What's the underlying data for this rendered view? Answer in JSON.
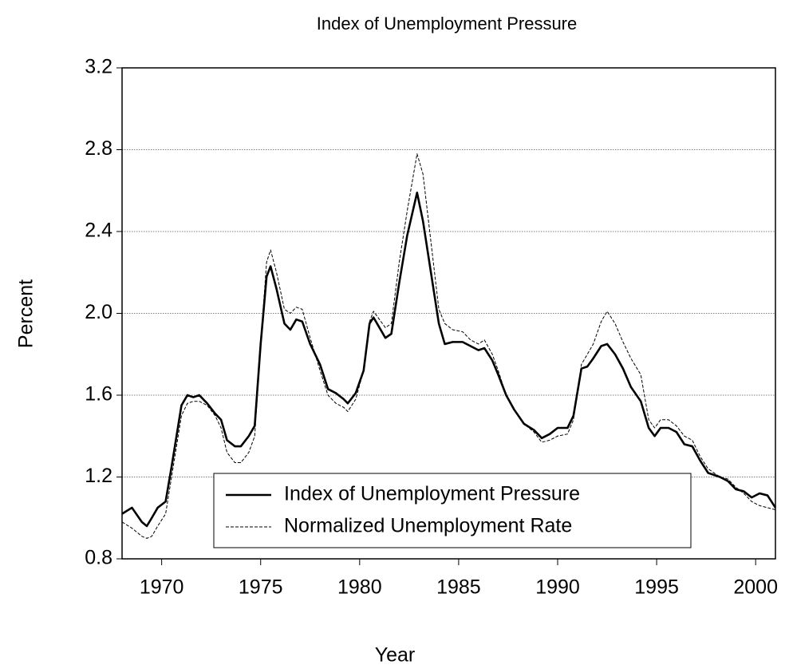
{
  "chart_data": {
    "type": "line",
    "title": "Index of Unemployment Pressure",
    "x_label": "Year",
    "y_label": "Percent",
    "x": [
      1968.0,
      1968.5,
      1969.0,
      1969.25,
      1969.5,
      1969.8,
      1970.2,
      1970.5,
      1971.0,
      1971.3,
      1971.6,
      1971.9,
      1972.3,
      1972.7,
      1973.0,
      1973.3,
      1973.7,
      1974.0,
      1974.4,
      1974.7,
      1975.0,
      1975.3,
      1975.5,
      1975.8,
      1976.2,
      1976.5,
      1976.8,
      1977.1,
      1977.5,
      1978.0,
      1978.4,
      1978.8,
      1979.2,
      1979.4,
      1979.8,
      1980.2,
      1980.5,
      1980.7,
      1981.0,
      1981.3,
      1981.6,
      1982.0,
      1982.4,
      1982.9,
      1983.2,
      1983.6,
      1984.0,
      1984.3,
      1984.7,
      1985.2,
      1985.6,
      1986.0,
      1986.3,
      1986.7,
      1987.0,
      1987.4,
      1987.8,
      1988.3,
      1988.8,
      1989.2,
      1989.6,
      1990.0,
      1990.5,
      1990.8,
      1991.2,
      1991.5,
      1991.8,
      1992.2,
      1992.5,
      1992.9,
      1993.3,
      1993.7,
      1994.2,
      1994.6,
      1994.9,
      1995.2,
      1995.6,
      1996.0,
      1996.4,
      1996.8,
      1997.2,
      1997.6,
      1998.2,
      1998.6,
      1999.0,
      1999.4,
      1999.8,
      2000.2,
      2000.6,
      2001.0
    ],
    "series": [
      {
        "name": "Index of Unemployment Pressure",
        "color": "#000000",
        "line_style": "solid",
        "values": [
          1.02,
          1.05,
          0.98,
          0.96,
          1.0,
          1.05,
          1.08,
          1.25,
          1.55,
          1.6,
          1.59,
          1.6,
          1.56,
          1.51,
          1.48,
          1.38,
          1.35,
          1.35,
          1.4,
          1.45,
          1.85,
          2.18,
          2.23,
          2.12,
          1.95,
          1.92,
          1.97,
          1.96,
          1.85,
          1.75,
          1.63,
          1.61,
          1.58,
          1.56,
          1.61,
          1.72,
          1.95,
          1.98,
          1.93,
          1.88,
          1.9,
          2.15,
          2.38,
          2.59,
          2.45,
          2.2,
          1.95,
          1.85,
          1.86,
          1.86,
          1.84,
          1.82,
          1.83,
          1.77,
          1.7,
          1.6,
          1.53,
          1.46,
          1.43,
          1.39,
          1.41,
          1.44,
          1.44,
          1.5,
          1.73,
          1.74,
          1.78,
          1.84,
          1.85,
          1.8,
          1.73,
          1.64,
          1.57,
          1.44,
          1.4,
          1.44,
          1.44,
          1.42,
          1.36,
          1.35,
          1.28,
          1.22,
          1.2,
          1.18,
          1.14,
          1.13,
          1.1,
          1.12,
          1.11,
          1.05
        ]
      },
      {
        "name": "Normalized Unemployment Rate",
        "color": "#000000",
        "line_style": "dashed",
        "values": [
          0.98,
          0.95,
          0.91,
          0.9,
          0.91,
          0.96,
          1.02,
          1.2,
          1.5,
          1.56,
          1.57,
          1.57,
          1.55,
          1.5,
          1.44,
          1.32,
          1.27,
          1.27,
          1.32,
          1.4,
          1.85,
          2.25,
          2.31,
          2.2,
          2.02,
          2.0,
          2.03,
          2.02,
          1.88,
          1.72,
          1.6,
          1.56,
          1.54,
          1.52,
          1.58,
          1.72,
          1.96,
          2.01,
          1.97,
          1.93,
          1.95,
          2.25,
          2.5,
          2.78,
          2.68,
          2.35,
          2.02,
          1.95,
          1.92,
          1.91,
          1.87,
          1.85,
          1.87,
          1.8,
          1.72,
          1.6,
          1.53,
          1.46,
          1.42,
          1.37,
          1.38,
          1.4,
          1.41,
          1.48,
          1.75,
          1.8,
          1.85,
          1.96,
          2.01,
          1.95,
          1.86,
          1.78,
          1.7,
          1.48,
          1.44,
          1.48,
          1.48,
          1.45,
          1.4,
          1.38,
          1.3,
          1.24,
          1.2,
          1.19,
          1.15,
          1.12,
          1.08,
          1.06,
          1.05,
          1.04
        ]
      }
    ],
    "xlim": [
      1968,
      2001
    ],
    "ylim": [
      0.8,
      3.2
    ],
    "xticks": [
      1970,
      1975,
      1980,
      1985,
      1990,
      1995,
      2000
    ],
    "yticks": [
      0.8,
      1.2,
      1.6,
      {
        "value": 2.0,
        "label": "2.0"
      },
      2.4,
      2.8,
      3.2
    ],
    "grid": true,
    "legend_loc": "lower left"
  }
}
